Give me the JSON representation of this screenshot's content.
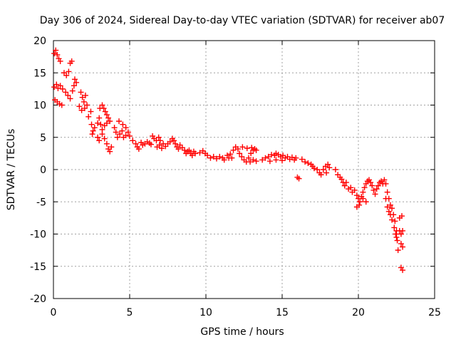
{
  "chart_data": {
    "type": "scatter",
    "title": "Day 306 of 2024, Sidereal Day-to-day VTEC variation (SDTVAR) for receiver ab07",
    "xlabel": "GPS time / hours",
    "ylabel": "SDTVAR / TECUs",
    "xlim": [
      0,
      25
    ],
    "ylim": [
      -20,
      20
    ],
    "xticks": [
      0,
      5,
      10,
      15,
      20,
      25
    ],
    "yticks": [
      -20,
      -15,
      -10,
      -5,
      0,
      5,
      10,
      15,
      20
    ],
    "grid": true,
    "marker": "+",
    "color": "#ff0000",
    "series": [
      {
        "name": "SDTVAR",
        "points": [
          [
            0.05,
            18.0
          ],
          [
            0.15,
            18.5
          ],
          [
            0.25,
            17.8
          ],
          [
            0.35,
            17.2
          ],
          [
            0.45,
            16.8
          ],
          [
            0.05,
            12.8
          ],
          [
            0.2,
            13.2
          ],
          [
            0.3,
            12.6
          ],
          [
            0.45,
            13.0
          ],
          [
            0.6,
            12.5
          ],
          [
            0.1,
            10.8
          ],
          [
            0.25,
            10.5
          ],
          [
            0.4,
            10.2
          ],
          [
            0.55,
            10.0
          ],
          [
            0.7,
            15.0
          ],
          [
            0.85,
            14.6
          ],
          [
            1.0,
            15.2
          ],
          [
            1.1,
            16.5
          ],
          [
            1.2,
            16.8
          ],
          [
            0.8,
            12.0
          ],
          [
            0.95,
            11.5
          ],
          [
            1.1,
            11.0
          ],
          [
            1.25,
            12.2
          ],
          [
            1.35,
            13.0
          ],
          [
            1.4,
            14.0
          ],
          [
            1.5,
            13.5
          ],
          [
            1.8,
            12.0
          ],
          [
            1.9,
            11.2
          ],
          [
            2.0,
            10.5
          ],
          [
            2.1,
            11.5
          ],
          [
            2.2,
            10.0
          ],
          [
            1.7,
            9.8
          ],
          [
            1.85,
            9.2
          ],
          [
            2.05,
            9.5
          ],
          [
            2.3,
            8.2
          ],
          [
            2.45,
            9.0
          ],
          [
            2.5,
            7.0
          ],
          [
            2.6,
            6.0
          ],
          [
            2.55,
            5.5
          ],
          [
            2.7,
            6.5
          ],
          [
            2.9,
            7.2
          ],
          [
            3.0,
            8.0
          ],
          [
            3.05,
            9.5
          ],
          [
            3.2,
            10.0
          ],
          [
            3.3,
            9.5
          ],
          [
            3.4,
            9.0
          ],
          [
            3.5,
            8.5
          ],
          [
            3.6,
            8.0
          ],
          [
            3.7,
            7.5
          ],
          [
            3.1,
            7.0
          ],
          [
            3.2,
            6.2
          ],
          [
            3.35,
            6.8
          ],
          [
            3.5,
            7.2
          ],
          [
            3.2,
            5.5
          ],
          [
            3.35,
            4.8
          ],
          [
            3.5,
            4.0
          ],
          [
            3.6,
            3.2
          ],
          [
            3.7,
            2.8
          ],
          [
            3.8,
            3.5
          ],
          [
            3.0,
            4.5
          ],
          [
            2.9,
            5.0
          ],
          [
            4.0,
            6.5
          ],
          [
            4.1,
            5.8
          ],
          [
            4.2,
            5.0
          ],
          [
            4.35,
            5.5
          ],
          [
            4.5,
            6.0
          ],
          [
            4.3,
            7.5
          ],
          [
            4.55,
            7.0
          ],
          [
            4.75,
            6.5
          ],
          [
            4.9,
            5.8
          ],
          [
            4.6,
            5.0
          ],
          [
            4.75,
            5.3
          ],
          [
            5.0,
            5.2
          ],
          [
            5.2,
            4.5
          ],
          [
            5.4,
            4.0
          ],
          [
            5.5,
            3.5
          ],
          [
            5.6,
            3.2
          ],
          [
            5.75,
            4.2
          ],
          [
            5.85,
            3.8
          ],
          [
            6.0,
            4.0
          ],
          [
            6.15,
            4.3
          ],
          [
            6.3,
            4.1
          ],
          [
            6.4,
            3.9
          ],
          [
            6.5,
            5.2
          ],
          [
            6.6,
            4.8
          ],
          [
            6.75,
            4.5
          ],
          [
            6.9,
            5.0
          ],
          [
            7.0,
            4.5
          ],
          [
            6.8,
            3.5
          ],
          [
            6.95,
            3.8
          ],
          [
            7.1,
            3.3
          ],
          [
            7.2,
            4.0
          ],
          [
            7.35,
            3.6
          ],
          [
            7.5,
            4.0
          ],
          [
            7.65,
            4.3
          ],
          [
            7.8,
            4.8
          ],
          [
            7.9,
            4.5
          ],
          [
            8.0,
            4.0
          ],
          [
            8.1,
            3.5
          ],
          [
            8.2,
            3.2
          ],
          [
            8.3,
            3.8
          ],
          [
            8.45,
            3.4
          ],
          [
            8.6,
            3.0
          ],
          [
            8.7,
            2.5
          ],
          [
            8.8,
            2.8
          ],
          [
            8.9,
            3.0
          ],
          [
            9.0,
            2.5
          ],
          [
            9.1,
            2.2
          ],
          [
            9.2,
            2.8
          ],
          [
            9.3,
            2.5
          ],
          [
            9.6,
            2.6
          ],
          [
            9.8,
            2.9
          ],
          [
            9.95,
            2.5
          ],
          [
            10.1,
            2.2
          ],
          [
            10.3,
            1.8
          ],
          [
            10.5,
            2.0
          ],
          [
            10.7,
            1.7
          ],
          [
            10.9,
            2.0
          ],
          [
            11.1,
            1.8
          ],
          [
            11.2,
            1.5
          ],
          [
            11.4,
            2.2
          ],
          [
            11.5,
            1.8
          ],
          [
            11.6,
            2.4
          ],
          [
            11.7,
            1.8
          ],
          [
            11.8,
            3.0
          ],
          [
            11.95,
            3.5
          ],
          [
            12.1,
            3.2
          ],
          [
            12.2,
            2.5
          ],
          [
            12.35,
            2.0
          ],
          [
            12.5,
            1.5
          ],
          [
            12.65,
            1.2
          ],
          [
            12.8,
            1.8
          ],
          [
            12.95,
            2.5
          ],
          [
            13.1,
            3.0
          ],
          [
            13.2,
            3.2
          ],
          [
            13.3,
            3.0
          ],
          [
            12.4,
            3.5
          ],
          [
            12.7,
            3.3
          ],
          [
            13.0,
            3.4
          ],
          [
            12.9,
            1.2
          ],
          [
            13.1,
            1.5
          ],
          [
            13.3,
            1.3
          ],
          [
            13.7,
            1.5
          ],
          [
            13.9,
            1.8
          ],
          [
            14.1,
            2.0
          ],
          [
            14.3,
            2.3
          ],
          [
            14.5,
            2.2
          ],
          [
            14.6,
            2.5
          ],
          [
            14.75,
            2.3
          ],
          [
            14.9,
            2.0
          ],
          [
            15.05,
            2.2
          ],
          [
            15.2,
            1.8
          ],
          [
            15.35,
            2.0
          ],
          [
            15.5,
            1.6
          ],
          [
            15.65,
            1.9
          ],
          [
            15.8,
            1.5
          ],
          [
            15.9,
            1.8
          ],
          [
            14.2,
            1.3
          ],
          [
            14.6,
            1.5
          ],
          [
            15.0,
            1.4
          ],
          [
            16.0,
            -1.2
          ],
          [
            16.1,
            -1.4
          ],
          [
            16.3,
            1.6
          ],
          [
            16.5,
            1.2
          ],
          [
            16.7,
            1.0
          ],
          [
            16.9,
            0.8
          ],
          [
            17.0,
            0.5
          ],
          [
            17.1,
            0.2
          ],
          [
            17.3,
            0.0
          ],
          [
            17.45,
            -0.5
          ],
          [
            17.55,
            -0.8
          ],
          [
            17.7,
            0.0
          ],
          [
            17.85,
            0.5
          ],
          [
            18.0,
            0.8
          ],
          [
            18.1,
            0.3
          ],
          [
            17.9,
            -0.5
          ],
          [
            18.5,
            0.0
          ],
          [
            18.65,
            -0.8
          ],
          [
            18.8,
            -1.2
          ],
          [
            18.9,
            -1.5
          ],
          [
            19.0,
            -2.0
          ],
          [
            19.1,
            -2.5
          ],
          [
            19.2,
            -2.0
          ],
          [
            19.35,
            -3.0
          ],
          [
            19.5,
            -2.8
          ],
          [
            19.6,
            -3.5
          ],
          [
            19.75,
            -3.2
          ],
          [
            19.9,
            -4.0
          ],
          [
            20.0,
            -4.5
          ],
          [
            20.1,
            -5.0
          ],
          [
            20.2,
            -4.2
          ],
          [
            20.3,
            -3.5
          ],
          [
            20.4,
            -2.8
          ],
          [
            20.5,
            -2.2
          ],
          [
            20.6,
            -1.8
          ],
          [
            20.7,
            -1.6
          ],
          [
            20.8,
            -2.0
          ],
          [
            20.9,
            -2.5
          ],
          [
            21.0,
            -3.2
          ],
          [
            21.1,
            -3.8
          ],
          [
            21.2,
            -3.0
          ],
          [
            21.3,
            -2.5
          ],
          [
            21.4,
            -2.0
          ],
          [
            21.5,
            -1.8
          ],
          [
            21.6,
            -2.2
          ],
          [
            21.7,
            -1.6
          ],
          [
            21.8,
            -2.2
          ],
          [
            21.9,
            -3.5
          ],
          [
            22.0,
            -4.5
          ],
          [
            22.1,
            -5.5
          ],
          [
            22.2,
            -6.0
          ],
          [
            22.3,
            -7.0
          ],
          [
            22.4,
            -8.0
          ],
          [
            22.5,
            -9.5
          ],
          [
            22.55,
            -11.0
          ],
          [
            22.6,
            -12.5
          ],
          [
            21.8,
            -4.5
          ],
          [
            21.9,
            -5.8
          ],
          [
            22.0,
            -6.5
          ],
          [
            22.1,
            -7.0
          ],
          [
            22.2,
            -7.8
          ],
          [
            22.35,
            -9.0
          ],
          [
            22.45,
            -10.0
          ],
          [
            22.5,
            -10.5
          ],
          [
            20.3,
            -4.5
          ],
          [
            20.5,
            -5.0
          ],
          [
            19.9,
            -5.8
          ],
          [
            20.05,
            -5.5
          ],
          [
            22.7,
            -9.5
          ],
          [
            22.8,
            -10.0
          ],
          [
            22.9,
            -9.5
          ],
          [
            22.7,
            -7.5
          ],
          [
            22.85,
            -7.2
          ],
          [
            22.8,
            -11.5
          ],
          [
            22.9,
            -12.0
          ],
          [
            22.8,
            -15.2
          ],
          [
            22.9,
            -15.6
          ]
        ]
      }
    ]
  }
}
